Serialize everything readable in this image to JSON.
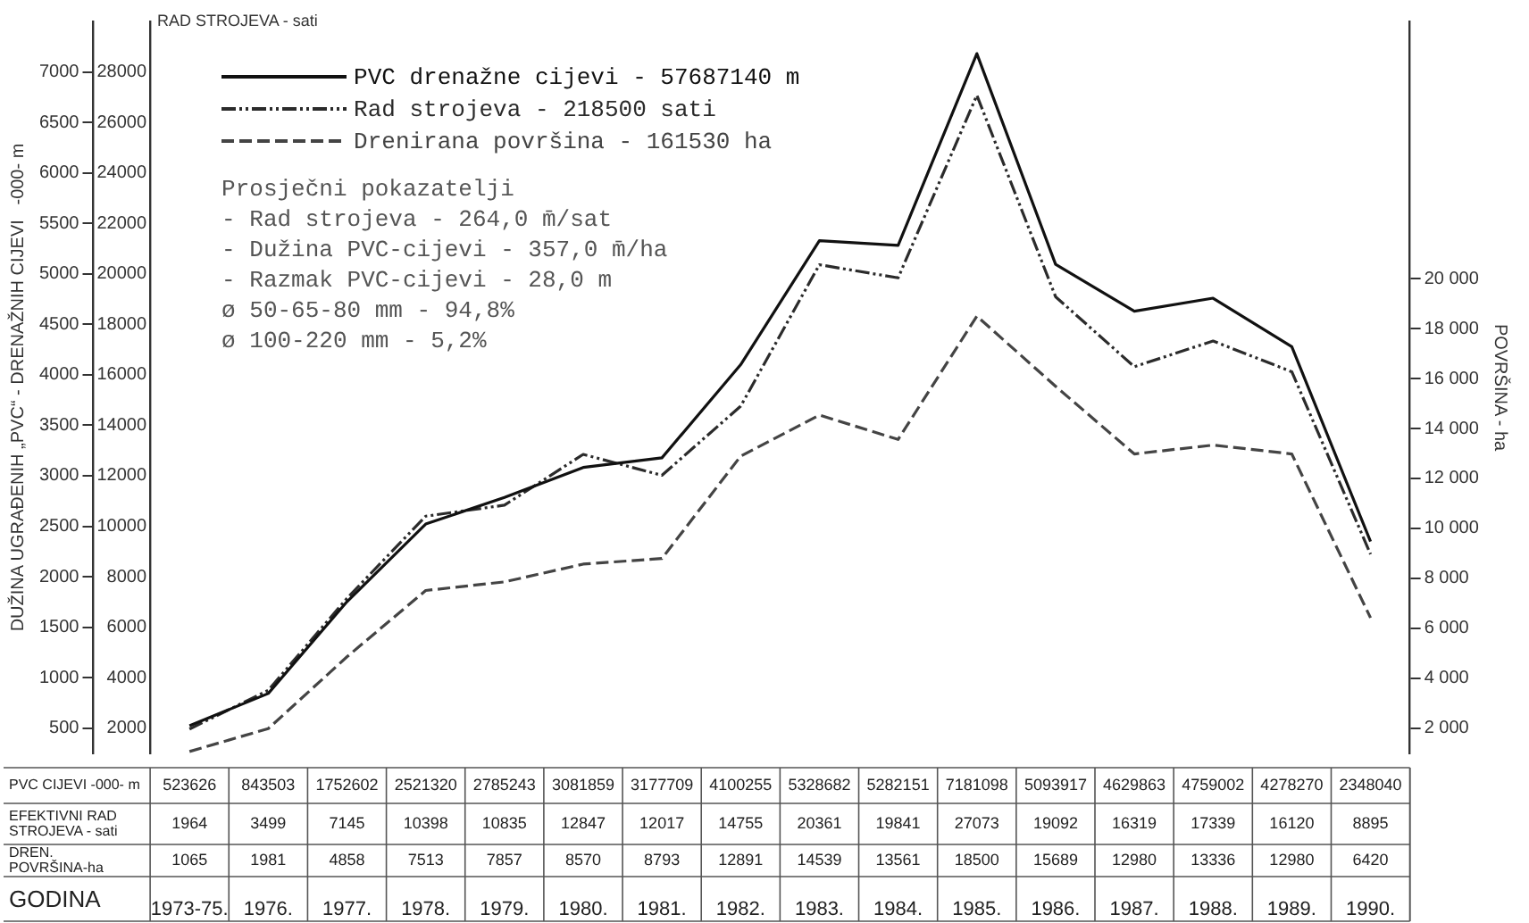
{
  "chart_data": {
    "type": "line",
    "categories": [
      "1973-75.",
      "1976.",
      "1977.",
      "1978.",
      "1979.",
      "1980.",
      "1981.",
      "1982.",
      "1983.",
      "1984.",
      "1985.",
      "1986.",
      "1987.",
      "1988.",
      "1989.",
      "1990."
    ],
    "xlabel": "GODINA",
    "ylabel": "DUŽINA UGRAĐENIH „PVC“ - DRENAŽNIH CIJEVI   -000- m",
    "y2label": "RAD STROJEVA - sati",
    "y3label": "POVRŠINA - ha",
    "ylim": [
      250,
      7500
    ],
    "yticks": [
      500,
      1000,
      1500,
      2000,
      2500,
      3000,
      3500,
      4000,
      4500,
      5000,
      5500,
      6000,
      6500,
      7000
    ],
    "y2lim": [
      1000,
      30000
    ],
    "y2ticks": [
      2000,
      4000,
      6000,
      8000,
      10000,
      12000,
      14000,
      16000,
      18000,
      20000,
      22000,
      24000,
      26000,
      28000
    ],
    "y3lim": [
      990,
      30300
    ],
    "y3ticks": [
      {
        "value": 2000,
        "label": "2 000"
      },
      {
        "value": 4000,
        "label": "4 000"
      },
      {
        "value": 6000,
        "label": "6 000"
      },
      {
        "value": 8000,
        "label": "8 000"
      },
      {
        "value": 10000,
        "label": "10 000"
      },
      {
        "value": 12000,
        "label": "12 000"
      },
      {
        "value": 14000,
        "label": "14 000"
      },
      {
        "value": 16000,
        "label": "16 000"
      },
      {
        "value": 18000,
        "label": "18 000"
      },
      {
        "value": 20000,
        "label": "20 000"
      }
    ],
    "grid": false,
    "legend": "top left",
    "marker": "none",
    "series": [
      {
        "name": "PVC drenažne cijevi - 57687140 m",
        "color": "#111111",
        "line_style": "solid",
        "values": [
          523.626,
          843.503,
          1752.602,
          2521.32,
          2785.243,
          3081.859,
          3177.709,
          4100.255,
          5328.682,
          5282.151,
          7181.098,
          5093.917,
          4629.863,
          4759.002,
          4278.27,
          2348.04
        ]
      },
      {
        "name": "Rad strojeva - 218500 sati",
        "color": "#2b2b2b",
        "line_style": "dotted",
        "axis": "y2",
        "values": [
          1964,
          3499,
          7145,
          10398,
          10835,
          12847,
          12017,
          14755,
          20361,
          19841,
          27073,
          19092,
          16319,
          17339,
          16120,
          8895
        ],
        "value_labels": [
          "1964",
          "3499",
          "7145",
          "10398",
          "10835",
          "12847",
          "12017",
          "14755",
          "20361",
          "19841",
          "27073",
          "19092",
          "16319",
          "17339",
          "16120",
          "8895"
        ]
      },
      {
        "name": "Drenirana površina - 161530 ha",
        "color": "#444444",
        "line_style": "dashed",
        "axis": "y3",
        "values": [
          1065,
          1981,
          4858,
          7513,
          7857,
          8570,
          8793,
          12891,
          14539,
          13561,
          18500,
          15689,
          12980,
          13336,
          12980,
          6420
        ],
        "value_labels": [
          "1065",
          "1981",
          "4858",
          "7513",
          "7857",
          "8570",
          "8793",
          "12891",
          "14539",
          "13561",
          "18500",
          "15689",
          "12980",
          "13336",
          "12980",
          "6420"
        ]
      }
    ],
    "annotations": [
      "Prosječni pokazatelji",
      "- Rad strojeva - 264,0 m̄/sat",
      "- Dužina PVC-cijevi - 357,0 m̄/ha",
      "- Razmak PVC-cijevi - 28,0 m",
      "ø 50-65-80 mm - 94,8%",
      "ø 100-220 mm - 5,2%",
      "PVC CIJEVI -000- m",
      "EFEKTIVNI RAD STROJEVA - sati",
      "DREN. POVRŠINA-ha",
      "523626",
      "843503",
      "1752602",
      "2521320",
      "2785243",
      "3081859",
      "3177709",
      "4100255",
      "5328682",
      "5282151",
      "7181098",
      "5093917",
      "4629863",
      "4759002",
      "4278270",
      "2348040"
    ]
  }
}
